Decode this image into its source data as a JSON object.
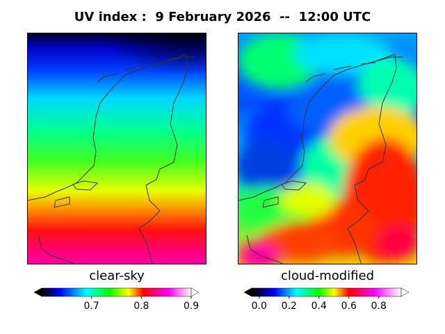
{
  "title": "UV index :  9 February 2026  --  12:00 UTC",
  "panels": [
    {
      "id": "clear",
      "label": "clear-sky",
      "colorbar": {
        "range": [
          0.6,
          0.9
        ],
        "ticks": [
          "0.7",
          "0.8",
          "0.9"
        ],
        "tick_values": [
          0.7,
          0.8,
          0.9
        ],
        "extend": "both"
      }
    },
    {
      "id": "cloud",
      "label": "cloud-modified",
      "colorbar": {
        "range": [
          -0.05,
          0.95
        ],
        "ticks": [
          "0.0",
          "0.2",
          "0.4",
          "0.6",
          "0.8"
        ],
        "tick_values": [
          0.0,
          0.2,
          0.4,
          0.6,
          0.8
        ],
        "extend": "both"
      }
    }
  ],
  "colormap": [
    "#000000",
    "#0000ff",
    "#00ffff",
    "#00ff00",
    "#ffff00",
    "#ff0000",
    "#ff00ff",
    "#ffffff"
  ],
  "coastline_color": "#333333"
}
